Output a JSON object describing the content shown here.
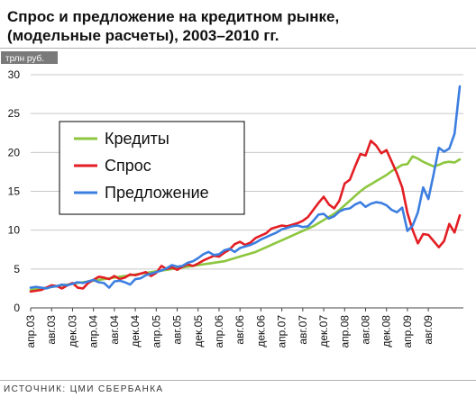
{
  "header": {
    "title_line1": "Спрос и предложение на кредитном рынке,",
    "title_line2": "(модельные расчеты), 2003–2010 гг."
  },
  "source": "ИСТОЧНИК: ЦМИ СБЕРБАНКА",
  "chart_data": {
    "type": "line",
    "unit": "трлн руб.",
    "ylim": [
      0,
      30
    ],
    "yticks": [
      0,
      5,
      10,
      15,
      20,
      25,
      30
    ],
    "grid": true,
    "legend_position": "top-left",
    "x_tick_labels": [
      "апр.03",
      "авг.03",
      "дек.03",
      "апр.04",
      "авг.04",
      "дек.04",
      "апр.05",
      "авг.05",
      "дек.05",
      "апр.06",
      "авг.06",
      "дек.06",
      "апр.07",
      "авг.07",
      "дек.07",
      "апр.08",
      "авг.08",
      "дек.08",
      "апр.09",
      "авг.09"
    ],
    "series": [
      {
        "name": "Кредиты",
        "color": "#8dc63f",
        "values": [
          2.3,
          2.4,
          2.5,
          2.6,
          2.7,
          2.8,
          2.9,
          3.0,
          3.1,
          3.2,
          3.3,
          3.4,
          3.5,
          3.6,
          3.7,
          3.8,
          3.9,
          4.0,
          4.1,
          4.2,
          4.3,
          4.4,
          4.5,
          4.6,
          4.7,
          4.8,
          4.9,
          5.0,
          5.1,
          5.2,
          5.3,
          5.4,
          5.5,
          5.6,
          5.7,
          5.8,
          5.9,
          6.0,
          6.2,
          6.4,
          6.6,
          6.8,
          7.0,
          7.2,
          7.5,
          7.8,
          8.1,
          8.4,
          8.7,
          9.0,
          9.3,
          9.6,
          9.9,
          10.2,
          10.5,
          10.9,
          11.3,
          11.7,
          12.1,
          12.6,
          13.2,
          13.8,
          14.4,
          15.0,
          15.5,
          15.9,
          16.3,
          16.7,
          17.1,
          17.6,
          18.0,
          18.4,
          18.5,
          19.5,
          19.2,
          18.8,
          18.5,
          18.2,
          18.4,
          18.7,
          18.8,
          18.7,
          19.1
        ]
      },
      {
        "name": "Спрос",
        "color": "#e31e24",
        "values": [
          2.1,
          2.2,
          2.3,
          2.6,
          2.9,
          2.8,
          2.5,
          2.9,
          3.2,
          2.6,
          2.5,
          3.2,
          3.6,
          4.0,
          3.9,
          3.7,
          4.1,
          3.7,
          3.9,
          4.3,
          4.2,
          4.4,
          4.6,
          4.1,
          4.5,
          5.4,
          5.0,
          5.2,
          4.9,
          5.3,
          5.6,
          5.4,
          5.7,
          6.1,
          6.4,
          6.7,
          6.6,
          7.1,
          7.5,
          8.2,
          8.5,
          8.1,
          8.4,
          9.0,
          9.3,
          9.6,
          10.2,
          10.4,
          10.6,
          10.5,
          10.7,
          10.9,
          11.2,
          11.7,
          12.6,
          13.5,
          14.3,
          13.3,
          12.8,
          13.8,
          16.0,
          16.5,
          18.2,
          19.8,
          19.6,
          21.5,
          20.9,
          19.9,
          20.3,
          18.8,
          17.3,
          15.5,
          12.2,
          10.0,
          8.3,
          9.5,
          9.4,
          8.6,
          7.8,
          8.6,
          10.8,
          9.7,
          11.9
        ]
      },
      {
        "name": "Предложение",
        "color": "#3c7ee0",
        "values": [
          2.6,
          2.7,
          2.6,
          2.5,
          2.7,
          2.8,
          3.0,
          2.9,
          3.1,
          3.3,
          3.2,
          3.4,
          3.6,
          3.3,
          3.2,
          2.6,
          3.4,
          3.5,
          3.3,
          3.0,
          3.7,
          3.8,
          4.2,
          4.4,
          4.6,
          4.8,
          5.1,
          5.5,
          5.3,
          5.4,
          5.8,
          6.0,
          6.4,
          6.9,
          7.2,
          6.8,
          6.9,
          7.4,
          7.6,
          7.2,
          7.7,
          7.9,
          8.1,
          8.4,
          8.8,
          9.1,
          9.4,
          9.7,
          10.1,
          10.3,
          10.5,
          10.6,
          10.4,
          10.5,
          11.2,
          12.0,
          12.1,
          11.5,
          11.8,
          12.4,
          12.7,
          12.8,
          13.3,
          13.6,
          13.0,
          13.4,
          13.6,
          13.5,
          13.2,
          12.6,
          12.3,
          12.9,
          9.9,
          10.6,
          12.3,
          15.5,
          14.0,
          17.2,
          20.6,
          20.1,
          20.5,
          22.4,
          28.5
        ]
      }
    ]
  }
}
